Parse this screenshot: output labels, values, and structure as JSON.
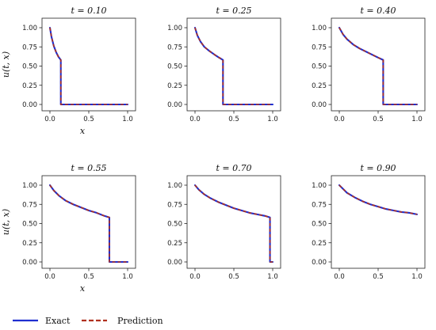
{
  "chart_data": {
    "type": "line",
    "colors": {
      "exact": "#1f2fd0",
      "prediction": "#b0301e"
    },
    "legend": {
      "placement": "bottom-left",
      "entries": [
        {
          "label": "Exact",
          "style": "solid",
          "color": "#1f2fd0"
        },
        {
          "label": "Prediction",
          "style": "dashed",
          "color": "#b0301e"
        }
      ]
    },
    "xlabel": "x",
    "ylabel": "u(t, x)",
    "xlim": [
      0,
      1
    ],
    "ylim": [
      0,
      1
    ],
    "xticks": [
      0.0,
      0.5,
      1.0
    ],
    "xtick_labels": [
      "0.0",
      "0.5",
      "1.0"
    ],
    "yticks": [
      0.0,
      0.25,
      0.5,
      0.75,
      1.0
    ],
    "ytick_labels": [
      "0.00",
      "0.25",
      "0.50",
      "0.75",
      "1.00"
    ],
    "panels": [
      {
        "title": "t = 0.10",
        "show_xlabel": true,
        "show_ylabel": true,
        "x": [
          0.0,
          0.02,
          0.05,
          0.08,
          0.11,
          0.14,
          0.14,
          1.0
        ],
        "y": [
          1.0,
          0.88,
          0.76,
          0.68,
          0.62,
          0.58,
          0.0,
          0.0
        ]
      },
      {
        "title": "t = 0.25",
        "show_xlabel": false,
        "show_ylabel": false,
        "x": [
          0.0,
          0.03,
          0.07,
          0.12,
          0.18,
          0.25,
          0.31,
          0.36,
          0.36,
          1.0
        ],
        "y": [
          1.0,
          0.9,
          0.82,
          0.75,
          0.7,
          0.65,
          0.61,
          0.58,
          0.0,
          0.0
        ]
      },
      {
        "title": "t = 0.40",
        "show_xlabel": false,
        "show_ylabel": false,
        "x": [
          0.0,
          0.05,
          0.1,
          0.18,
          0.26,
          0.34,
          0.42,
          0.5,
          0.565,
          0.565,
          1.0
        ],
        "y": [
          1.0,
          0.91,
          0.85,
          0.78,
          0.73,
          0.69,
          0.65,
          0.61,
          0.58,
          0.0,
          0.0
        ]
      },
      {
        "title": "t = 0.55",
        "show_xlabel": true,
        "show_ylabel": true,
        "x": [
          0.0,
          0.05,
          0.12,
          0.2,
          0.3,
          0.4,
          0.5,
          0.6,
          0.7,
          0.765,
          0.765,
          1.0
        ],
        "y": [
          1.0,
          0.93,
          0.86,
          0.8,
          0.75,
          0.71,
          0.67,
          0.64,
          0.6,
          0.58,
          0.0,
          0.0
        ]
      },
      {
        "title": "t = 0.70",
        "show_xlabel": false,
        "show_ylabel": false,
        "x": [
          0.0,
          0.05,
          0.12,
          0.2,
          0.3,
          0.4,
          0.5,
          0.6,
          0.7,
          0.8,
          0.9,
          0.965,
          0.965,
          1.0
        ],
        "y": [
          1.0,
          0.94,
          0.88,
          0.83,
          0.78,
          0.74,
          0.7,
          0.67,
          0.64,
          0.62,
          0.6,
          0.58,
          0.0,
          0.0
        ]
      },
      {
        "title": "t = 0.90",
        "show_xlabel": false,
        "show_ylabel": false,
        "x": [
          0.0,
          0.05,
          0.1,
          0.2,
          0.3,
          0.4,
          0.5,
          0.6,
          0.7,
          0.8,
          0.9,
          1.0
        ],
        "y": [
          1.0,
          0.95,
          0.9,
          0.84,
          0.79,
          0.75,
          0.72,
          0.69,
          0.67,
          0.65,
          0.64,
          0.62
        ]
      }
    ]
  }
}
